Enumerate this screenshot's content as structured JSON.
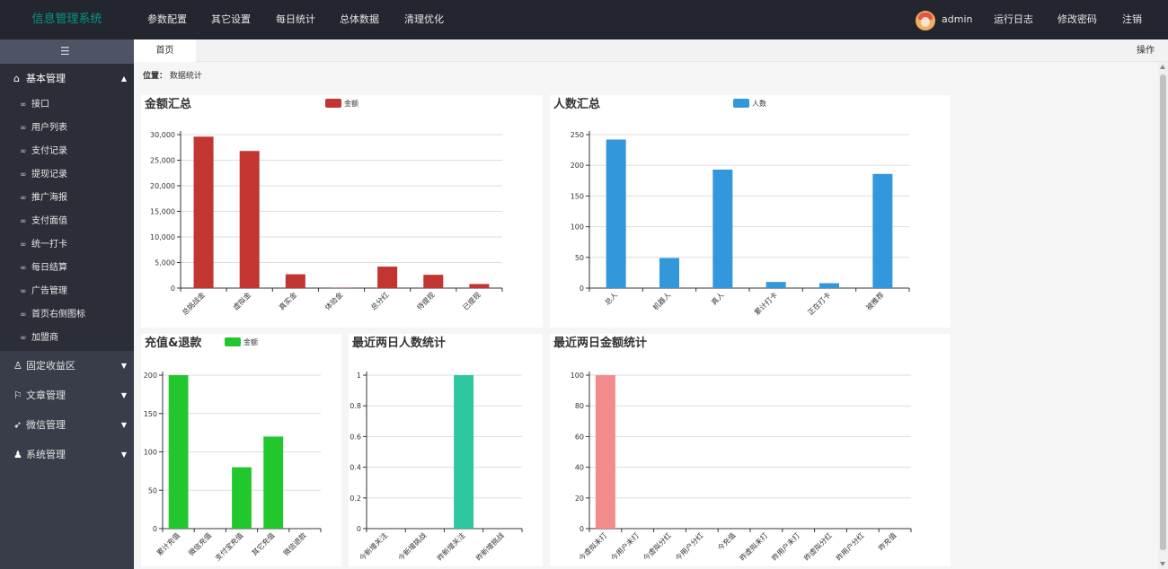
{
  "app": {
    "title": "信息管理系统"
  },
  "top_nav": [
    "参数配置",
    "其它设置",
    "每日统计",
    "总体数据",
    "清理优化"
  ],
  "top_right": {
    "user": "admin",
    "log": "运行日志",
    "password": "修改密码",
    "logout": "注销"
  },
  "sidebar": {
    "toggle_icon": "list-icon",
    "open_group": {
      "label": "基本管理",
      "items": [
        "接口",
        "用户列表",
        "支付记录",
        "提现记录",
        "推广海报",
        "支付面值",
        "统一打卡",
        "每日结算",
        "广告管理",
        "首页右侧图标",
        "加盟商"
      ]
    },
    "collapsed_groups": [
      "固定收益区",
      "文章管理",
      "微信管理",
      "系统管理"
    ]
  },
  "tabs": {
    "home": "首页",
    "operation": "操作"
  },
  "breadcrumb": {
    "label": "位置：",
    "value": "数据统计"
  },
  "colors": {
    "topbar": "#23262e",
    "sidebar": "#393d49",
    "accent": "#009688",
    "red": "#c23531",
    "blue": "#3398db",
    "green": "#22c72e",
    "teal": "#2ec7a0",
    "pink": "#f28b8b"
  },
  "chart_data": [
    {
      "type": "bar",
      "title": "金额汇总",
      "legend": [
        "金额"
      ],
      "color": "#c23531",
      "categories": [
        "总挑战金",
        "虚拟金",
        "真实金",
        "体验金",
        "总分红",
        "待提现",
        "已提现"
      ],
      "values": [
        29600,
        26800,
        2700,
        50,
        4200,
        2600,
        800
      ],
      "ylim": [
        0,
        30000
      ],
      "yticks": [
        0,
        5000,
        10000,
        15000,
        20000,
        25000,
        30000
      ],
      "ytick_labels": [
        "0",
        "5,000",
        "10,000",
        "15,000",
        "20,000",
        "25,000",
        "30,000"
      ]
    },
    {
      "type": "bar",
      "title": "人数汇总",
      "legend": [
        "人数"
      ],
      "color": "#3398db",
      "categories": [
        "总人",
        "机器人",
        "真人",
        "累计打卡",
        "正在打卡",
        "被推荐"
      ],
      "values": [
        242,
        49,
        193,
        10,
        8,
        186
      ],
      "ylim": [
        0,
        250
      ],
      "yticks": [
        0,
        50,
        100,
        150,
        200,
        250
      ],
      "ytick_labels": [
        "0",
        "50",
        "100",
        "150",
        "200",
        "250"
      ]
    },
    {
      "type": "bar",
      "title": "充值&退款",
      "legend": [
        "金额"
      ],
      "color": "#22c72e",
      "categories": [
        "累计充值",
        "微信充值",
        "支付宝充值",
        "其它充值",
        "微信退款"
      ],
      "values": [
        200,
        0,
        80,
        120,
        0
      ],
      "ylim": [
        0,
        200
      ],
      "yticks": [
        0,
        50,
        100,
        150,
        200
      ],
      "ytick_labels": [
        "0",
        "50",
        "100",
        "150",
        "200"
      ]
    },
    {
      "type": "bar",
      "title": "最近两日人数统计",
      "legend": [],
      "color": "#2ec7a0",
      "categories": [
        "今新增关注",
        "今新增挑战",
        "昨新增关注",
        "昨新增挑战"
      ],
      "values": [
        0,
        0,
        1,
        0
      ],
      "ylim": [
        0,
        1
      ],
      "yticks": [
        0,
        0.2,
        0.4,
        0.6,
        0.8,
        1
      ],
      "ytick_labels": [
        "0",
        "0.2",
        "0.4",
        "0.6",
        "0.8",
        "1"
      ]
    },
    {
      "type": "bar",
      "title": "最近两日金额统计",
      "legend": [],
      "color": "#f28b8b",
      "categories": [
        "今虚拟未打",
        "今用户未打",
        "今虚拟分红",
        "今用户分红",
        "今充值",
        "昨虚拟未打",
        "昨用户未打",
        "昨虚拟分红",
        "昨用户分红",
        "昨充值"
      ],
      "values": [
        100,
        0,
        0,
        0,
        0,
        0,
        0,
        0,
        0,
        0
      ],
      "ylim": [
        0,
        100
      ],
      "yticks": [
        0,
        20,
        40,
        60,
        80,
        100
      ],
      "ytick_labels": [
        "0",
        "20",
        "40",
        "60",
        "80",
        "100"
      ]
    }
  ]
}
